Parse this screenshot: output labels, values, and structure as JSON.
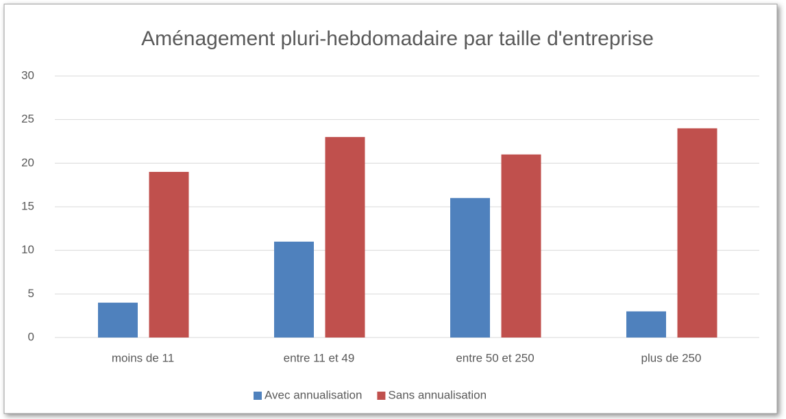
{
  "chart_data": {
    "type": "bar",
    "title": "Aménagement pluri-hebdomadaire par taille d'entreprise",
    "categories": [
      "moins de 11",
      "entre 11 et 49",
      "entre 50 et 250",
      "plus de 250"
    ],
    "series": [
      {
        "name": "Avec annualisation",
        "color": "#4f81bd",
        "values": [
          4,
          11,
          16,
          3
        ]
      },
      {
        "name": "Sans annualisation",
        "color": "#c0504d",
        "values": [
          19,
          23,
          21,
          24
        ]
      }
    ],
    "ylim": [
      0,
      30
    ],
    "yticks": [
      0,
      5,
      10,
      15,
      20,
      25,
      30
    ],
    "grid": true,
    "legend": "bottom"
  }
}
